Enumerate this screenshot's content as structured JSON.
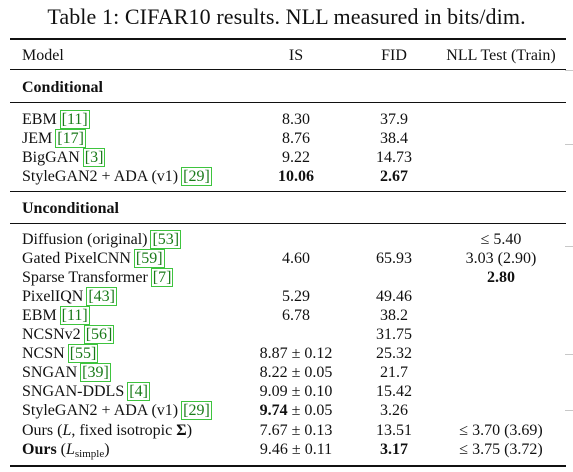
{
  "caption": "Table 1: CIFAR10 results. NLL measured in bits/dim.",
  "headers": {
    "model": "Model",
    "is": "IS",
    "fid": "FID",
    "nll": "NLL Test (Train)"
  },
  "sections": [
    {
      "title": "Conditional",
      "rows": [
        {
          "model": "EBM",
          "ref": "[11]",
          "is": "8.30",
          "fid": "37.9",
          "nll": ""
        },
        {
          "model": "JEM",
          "ref": "[17]",
          "is": "8.76",
          "fid": "38.4",
          "nll": ""
        },
        {
          "model": "BigGAN",
          "ref": "[3]",
          "is": "9.22",
          "fid": "14.73",
          "nll": ""
        },
        {
          "model": "StyleGAN2 + ADA (v1)",
          "ref": "[29]",
          "is": "10.06",
          "fid": "2.67",
          "nll": ""
        }
      ]
    },
    {
      "title": "Unconditional",
      "rows": [
        {
          "model": "Diffusion (original)",
          "ref": "[53]",
          "is": "",
          "fid": "",
          "nll": "≤ 5.40"
        },
        {
          "model": "Gated PixelCNN",
          "ref": "[59]",
          "is": "4.60",
          "fid": "65.93",
          "nll": "3.03 (2.90)"
        },
        {
          "model": "Sparse Transformer",
          "ref": "[7]",
          "is": "",
          "fid": "",
          "nll": "2.80"
        },
        {
          "model": "PixelIQN",
          "ref": "[43]",
          "is": "5.29",
          "fid": "49.46",
          "nll": ""
        },
        {
          "model": "EBM",
          "ref": "[11]",
          "is": "6.78",
          "fid": "38.2",
          "nll": ""
        },
        {
          "model": "NCSNv2",
          "ref": "[56]",
          "is": "",
          "fid": "31.75",
          "nll": ""
        },
        {
          "model": "NCSN",
          "ref": "[55]",
          "is": "8.87 ± 0.12",
          "fid": "25.32",
          "nll": ""
        },
        {
          "model": "SNGAN",
          "ref": "[39]",
          "is": "8.22 ± 0.05",
          "fid": "21.7",
          "nll": ""
        },
        {
          "model": "SNGAN-DDLS",
          "ref": "[4]",
          "is": "9.09 ± 0.10",
          "fid": "15.42",
          "nll": ""
        },
        {
          "model": "StyleGAN2 + ADA (v1)",
          "ref": "[29]",
          "is_main": "9.74",
          "is_rest": " ± 0.05",
          "fid": "3.26",
          "nll": ""
        },
        {
          "model_pre": "Ours (",
          "model_var": "L",
          "model_post": ", fixed isotropic ",
          "model_sigma": "Σ",
          "model_end": ")",
          "is": "7.67 ± 0.13",
          "fid": "13.51",
          "nll": "≤ 3.70 (3.69)"
        },
        {
          "model_pre": "Ours",
          "model_mid": " (",
          "model_var": "L",
          "model_sub": "simple",
          "model_end": ")",
          "is": "9.46 ± 0.11",
          "fid": "3.17",
          "nll": "≤ 3.75 (3.72)"
        }
      ]
    }
  ]
}
